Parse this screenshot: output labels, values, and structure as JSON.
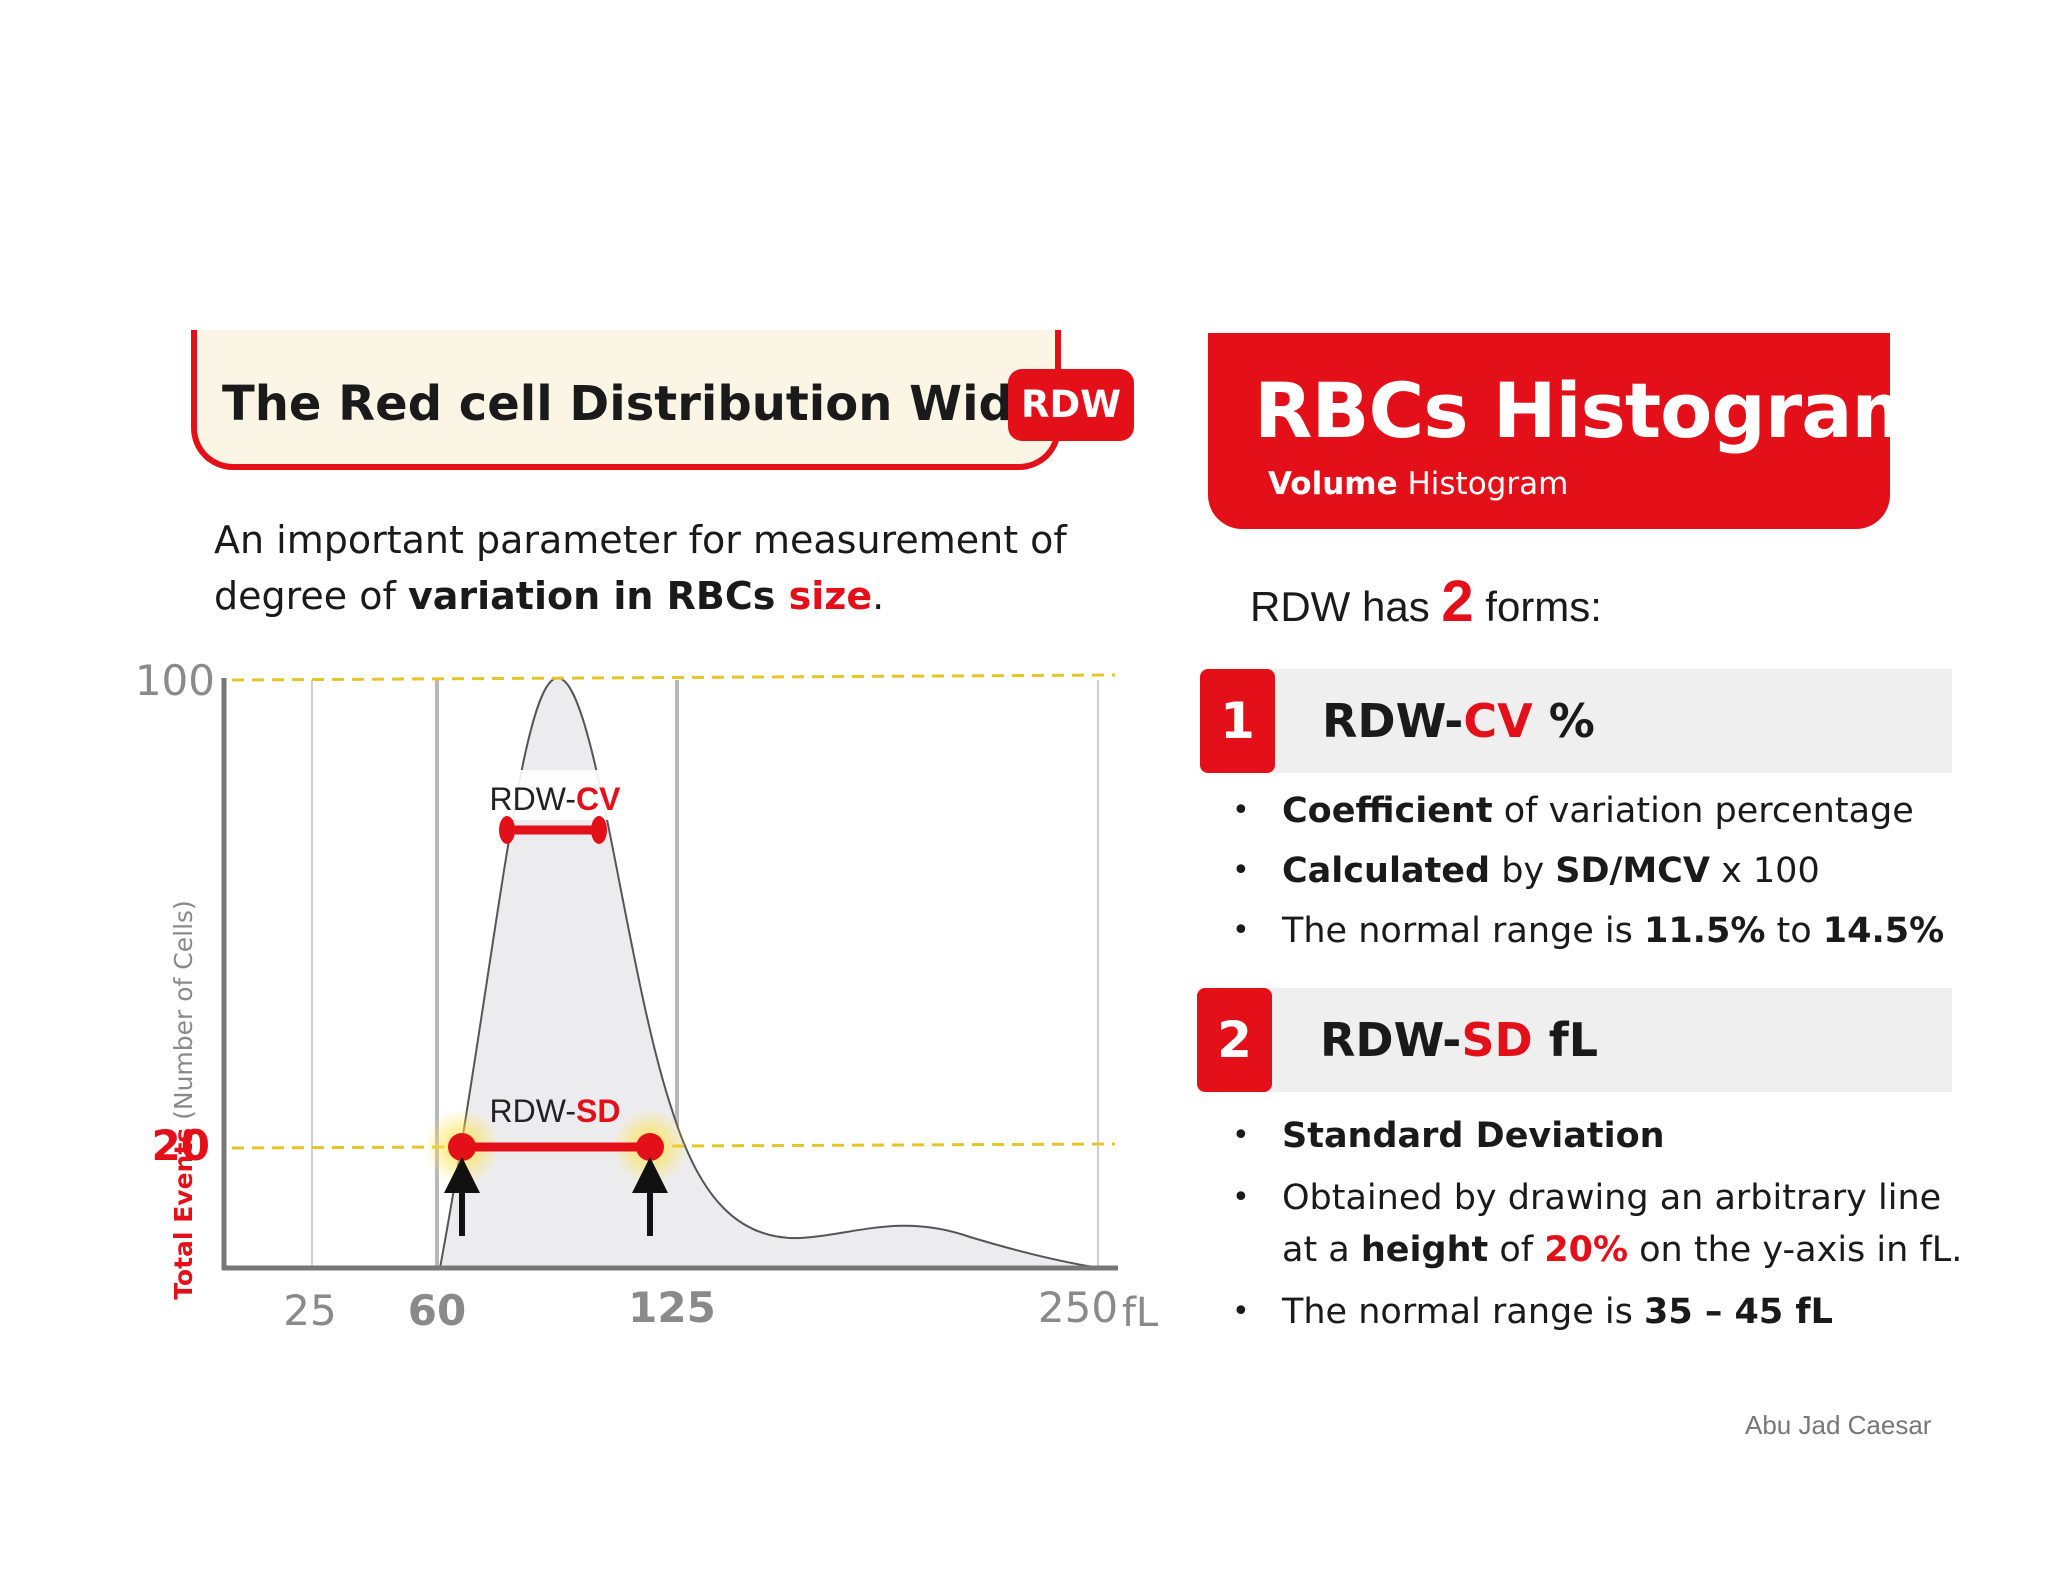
{
  "left": {
    "title": "The Red cell Distribution Width",
    "badge": "RDW",
    "intro_1": "An important parameter for measurement of",
    "intro_2a": "degree of ",
    "intro_2b": "variation in RBCs ",
    "intro_2c": "size",
    "intro_2d": "."
  },
  "chart_data": {
    "type": "area",
    "x_ticks": [
      "25",
      "60",
      "125",
      "250"
    ],
    "x_unit": "fL",
    "y_ticks": [
      "100",
      "20"
    ],
    "ylabel_bold": "Total Events",
    "ylabel_rest": " (Number of Cells)",
    "gridlines": true,
    "reference_lines": [
      100,
      20
    ],
    "cv_label_a": "RDW-",
    "cv_label_b": "CV",
    "sd_label_a": "RDW-",
    "sd_label_b": "SD",
    "colors": {
      "accent": "#e3101a",
      "reference": "#e6c52a",
      "curve_fill": "#ececee"
    }
  },
  "right": {
    "title": "RBCs Histogram",
    "sub_bold": "Volume",
    "sub_rest": " Histogram",
    "forms_a": "RDW has ",
    "forms_num": "2",
    "forms_b": " forms:",
    "form1": {
      "num": "1",
      "t_a": "RDW-",
      "t_b": "CV",
      "t_c": " %",
      "b1_bold": "Coefficient",
      "b1_rest": " of variation percentage",
      "b2_bold": "Calculated",
      "b2_mid": " by ",
      "b2_bold2": "SD/MCV",
      "b2_rest": " x 100",
      "b3_rest": "The normal range is ",
      "b3_bold": "11.5%",
      "b3_mid": " to ",
      "b3_bold2": "14.5%"
    },
    "form2": {
      "num": "2",
      "t_a": "RDW-",
      "t_b": "SD",
      "t_c": " fL",
      "b1_bold": "Standard Deviation",
      "b2_rest": "Obtained by drawing an arbitrary line",
      "b2_line2a": "at a ",
      "b2_bold": "height",
      "b2_mid": " of ",
      "b2_red": "20%",
      "b2_end": " on the y-axis in fL.",
      "b3_rest": "The normal range is ",
      "b3_bold": "35 – 45 fL"
    }
  },
  "credit": "Abu Jad Caesar"
}
